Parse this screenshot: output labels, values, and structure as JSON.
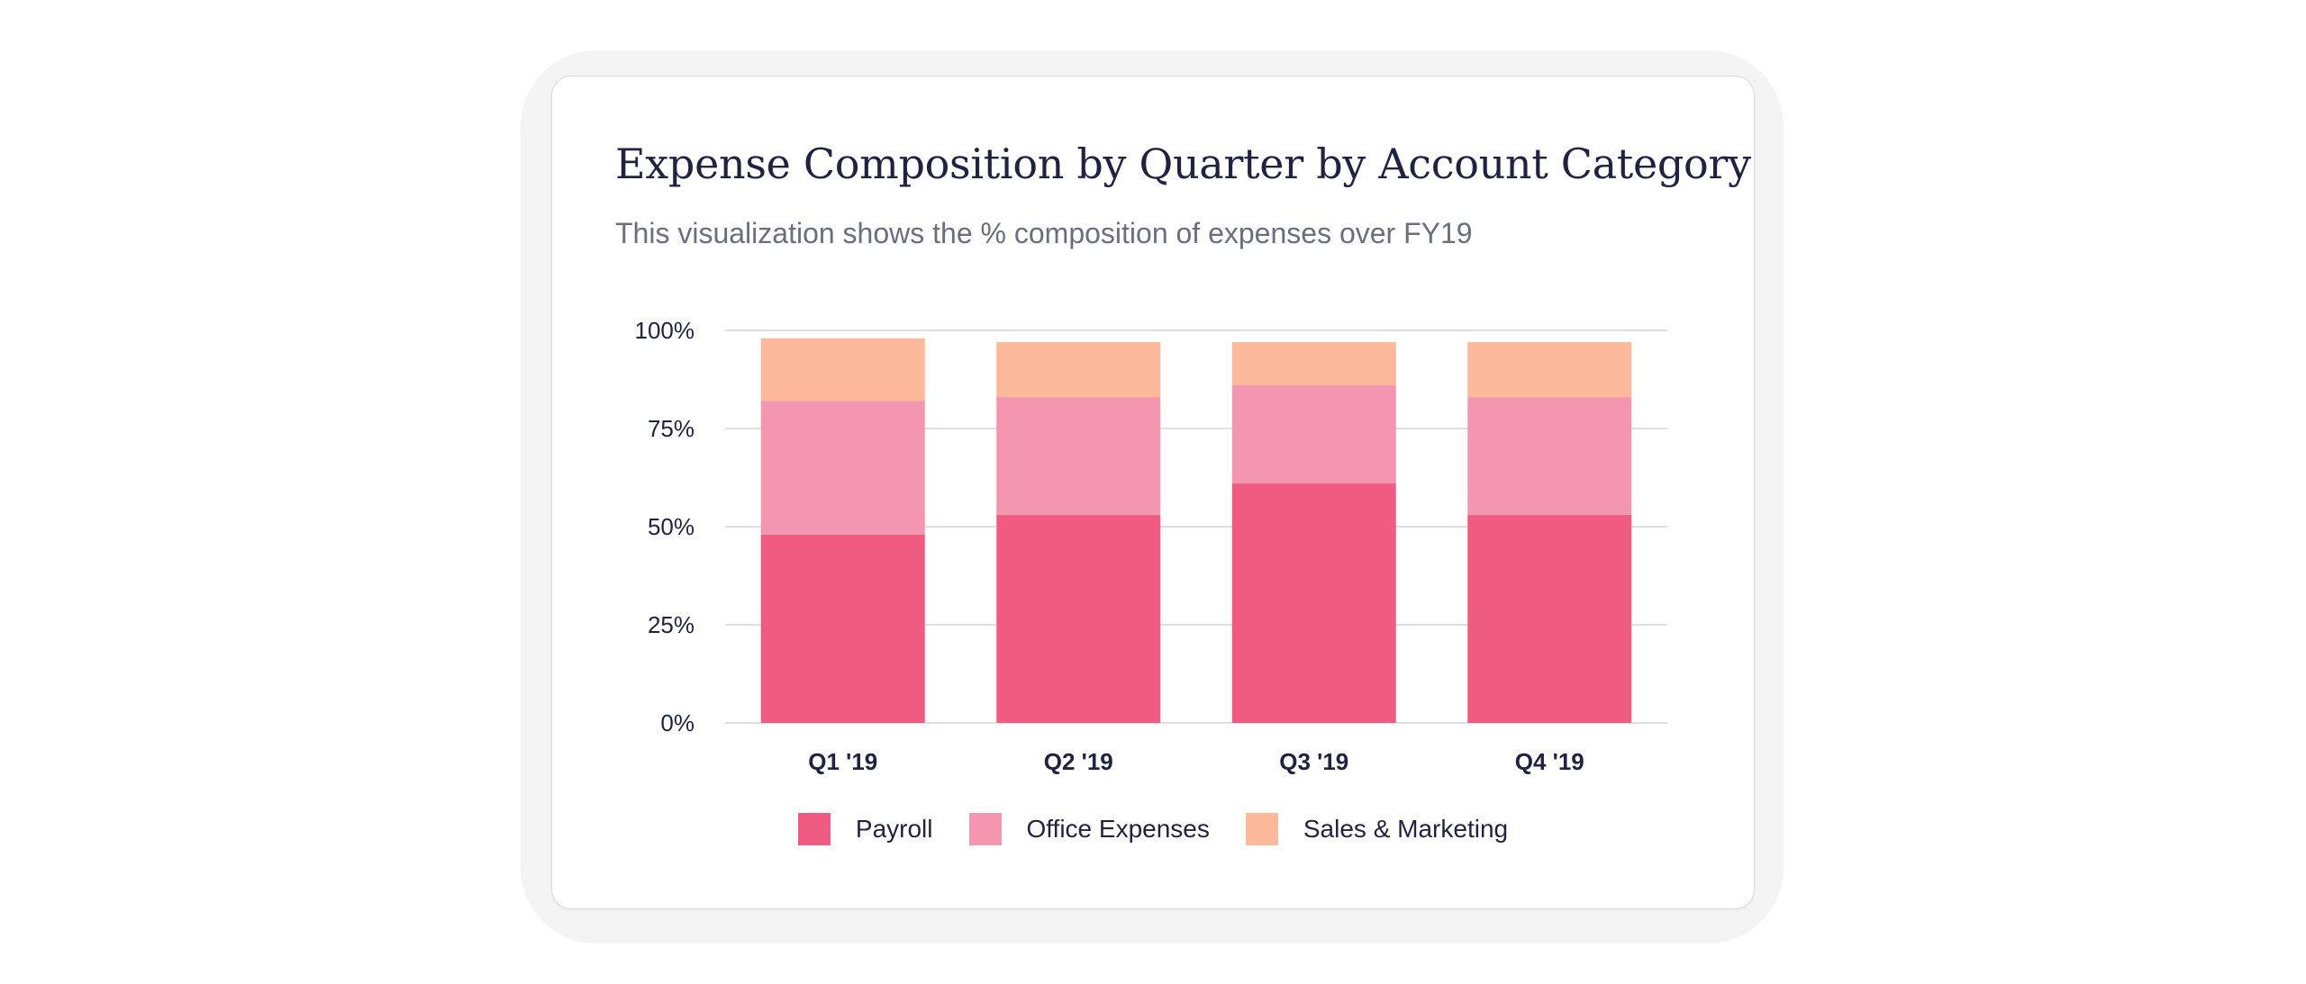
{
  "card": {
    "title": "Expense Composition by Quarter by Account Category",
    "subtitle": "This visualization shows the % composition of expenses over FY19"
  },
  "chart_data": {
    "type": "bar",
    "stacked": true,
    "categories": [
      "Q1 '19",
      "Q2 '19",
      "Q3 '19",
      "Q4 '19"
    ],
    "yticks": [
      "0%",
      "25%",
      "50%",
      "75%",
      "100%"
    ],
    "ylim": [
      0,
      100
    ],
    "grid": true,
    "legend_position": "bottom",
    "series": [
      {
        "name": "Payroll",
        "color": "#f05b82",
        "values": [
          48,
          53,
          61,
          53
        ]
      },
      {
        "name": "Office Expenses",
        "color": "#f596b0",
        "values": [
          34,
          30,
          25,
          30
        ]
      },
      {
        "name": "Sales & Marketing",
        "color": "#fdb99c",
        "values": [
          16,
          14,
          11,
          14
        ]
      }
    ]
  }
}
